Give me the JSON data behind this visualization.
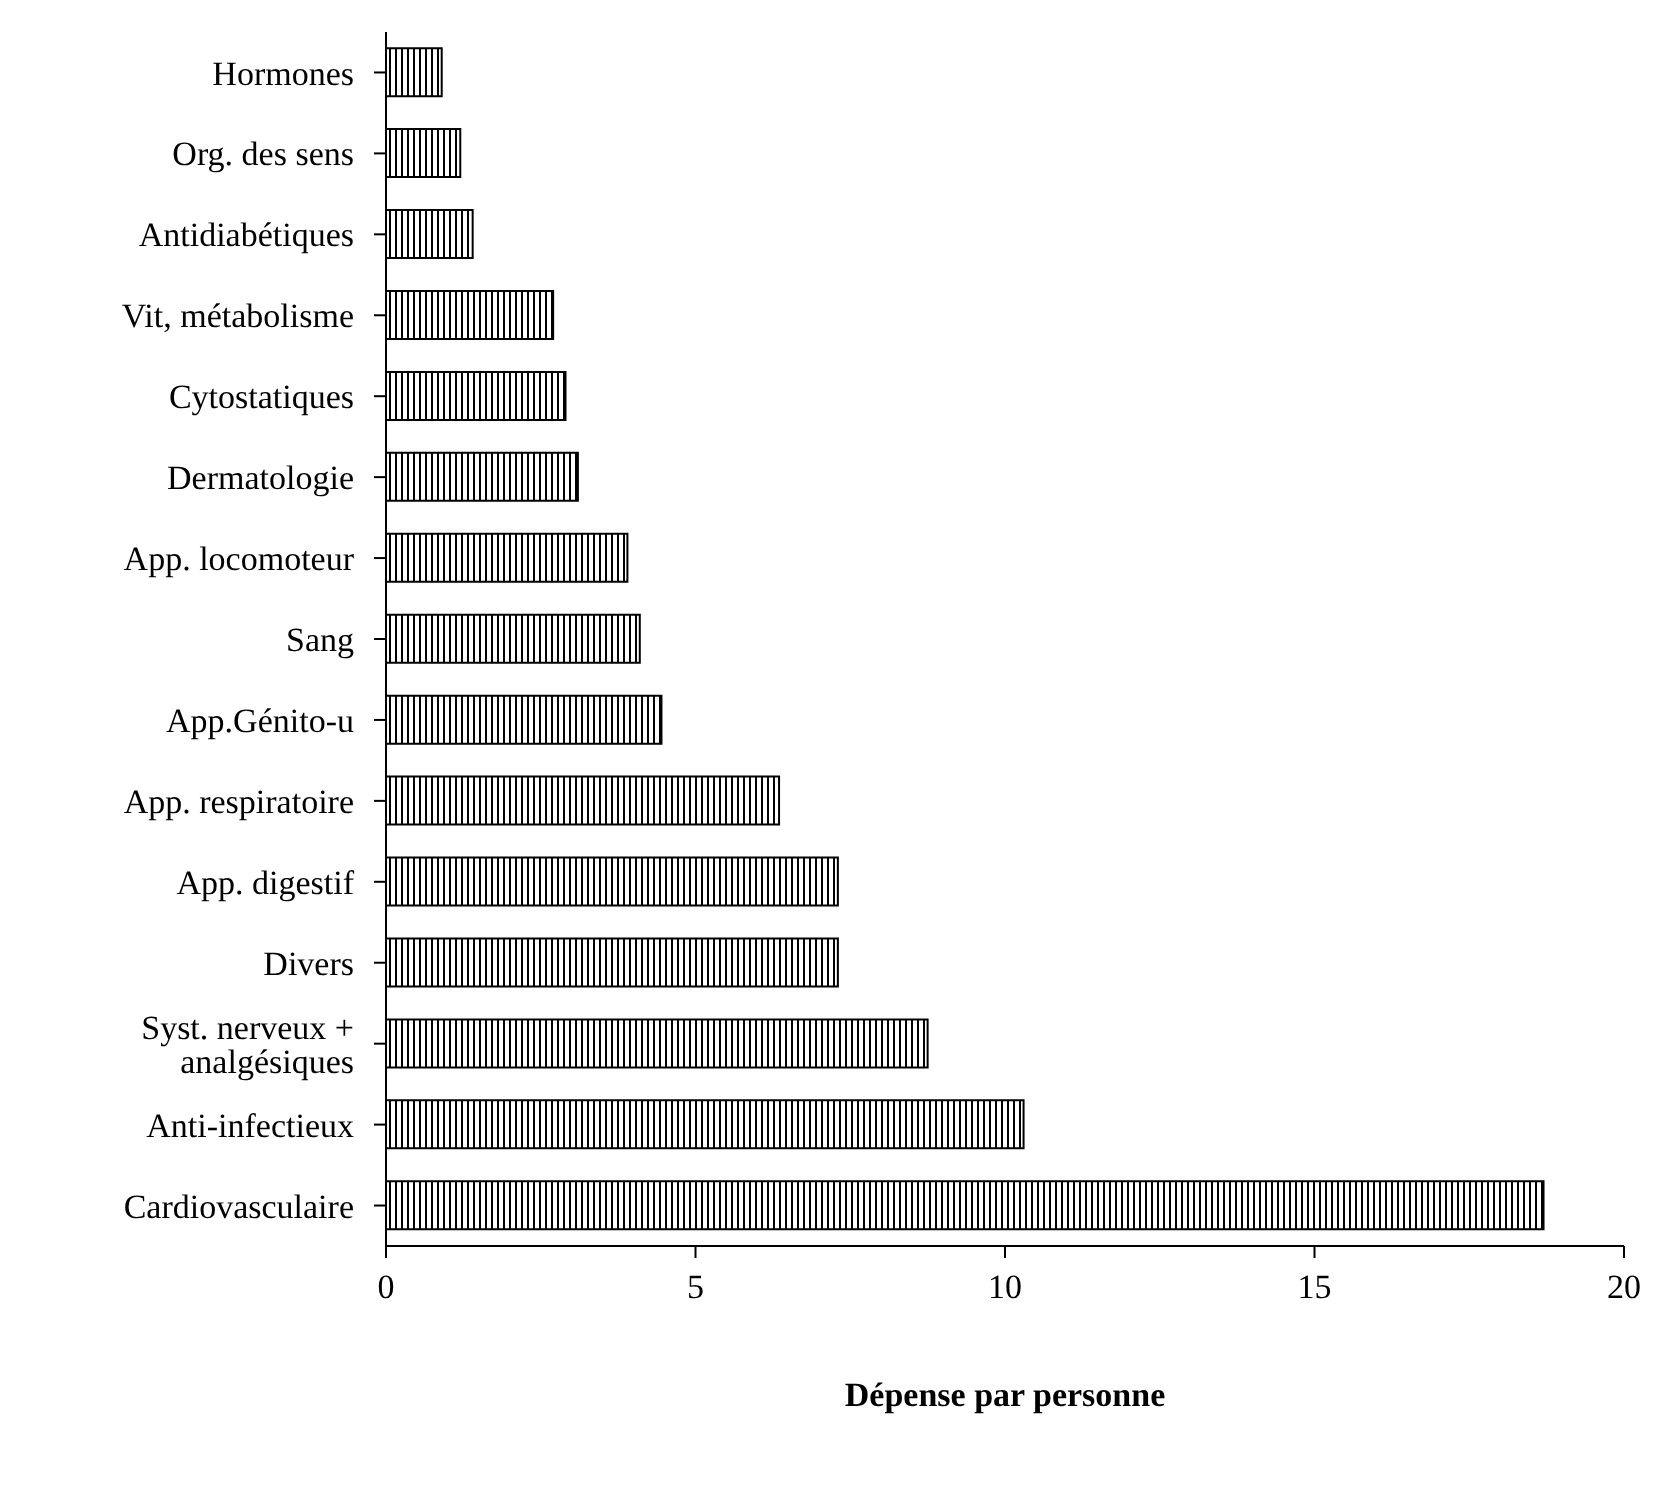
{
  "chart_data": {
    "type": "bar",
    "orientation": "horizontal",
    "xlabel": "Dépense par personne",
    "categories": [
      "Hormones",
      "Org. des sens",
      "Antidiabétiques",
      "Vit, métabolisme",
      "Cytostatiques",
      "Dermatologie",
      "App. locomoteur",
      "Sang",
      "App.Génito-u",
      "App. respiratoire",
      "App. digestif",
      "Divers",
      "Syst. nerveux + analgésiques",
      "Anti-infectieux",
      "Cardiovasculaire"
    ],
    "values": [
      0.9,
      1.2,
      1.4,
      2.7,
      2.9,
      3.1,
      3.9,
      4.1,
      4.45,
      6.35,
      7.3,
      7.3,
      8.75,
      10.3,
      18.7
    ],
    "color": "#000000",
    "xlim": [
      0,
      20
    ],
    "xticks": [
      0,
      5,
      10,
      15,
      20
    ],
    "grid": false,
    "legend": false
  }
}
